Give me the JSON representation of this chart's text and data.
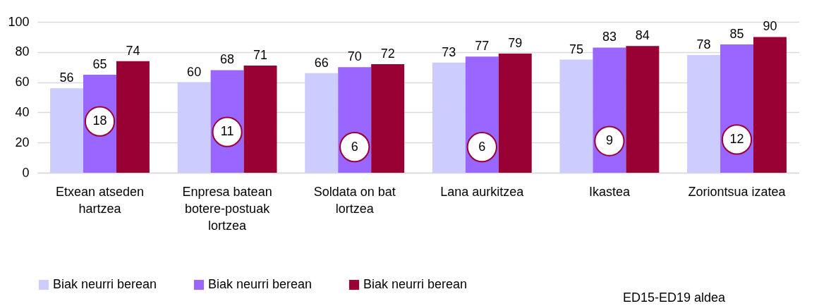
{
  "chart_data": {
    "type": "bar",
    "categories": [
      "Etxean atseden hartzea",
      "Enpresa batean botere-postuak lortzea",
      "Soldata on bat lortzea",
      "Lana aurkitzea",
      "Ikastea",
      "Zoriontsua izatea"
    ],
    "series": [
      {
        "name": "Biak neurri berean",
        "color": "#ccccff",
        "values": [
          56,
          60,
          66,
          73,
          75,
          78
        ]
      },
      {
        "name": "Biak neurri berean",
        "color": "#9966ff",
        "values": [
          65,
          68,
          70,
          77,
          83,
          85
        ]
      },
      {
        "name": "Biak neurri berean",
        "color": "#990033",
        "values": [
          74,
          71,
          72,
          79,
          84,
          90
        ]
      }
    ],
    "ylim": [
      0,
      100
    ],
    "yticks": [
      0,
      20,
      40,
      60,
      80,
      100
    ],
    "grid": "y",
    "legend": "bottom",
    "data_labels": true,
    "annotations": [
      {
        "text": "18",
        "x": "Etxean atseden hartzea",
        "y": 34
      },
      {
        "text": "11",
        "x": "Enpresa batean botere-postuak lortzea",
        "y": 27
      },
      {
        "text": "6",
        "x": "Soldata on bat lortzea",
        "y": 17
      },
      {
        "text": "6",
        "x": "Lana aurkitzea",
        "y": 17
      },
      {
        "text": "9",
        "x": "Ikastea",
        "y": 21
      },
      {
        "text": "12",
        "x": "Zoriontsua izatea",
        "y": 22
      },
      "ED15-ED19 aldea"
    ]
  }
}
